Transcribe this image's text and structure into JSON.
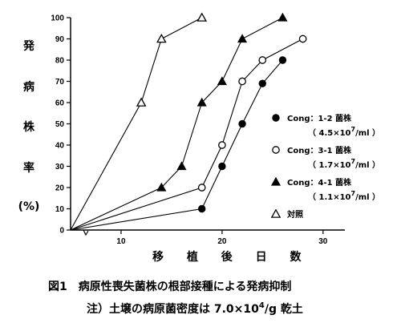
{
  "chart_data": {
    "type": "line",
    "title": "",
    "xlabel": "移 植 後 日 数",
    "ylabel_chars": [
      "発",
      "病",
      "株",
      "率",
      "(%)"
    ],
    "xlim": [
      5,
      32
    ],
    "ylim": [
      0,
      100
    ],
    "xticks": [
      10,
      20,
      30
    ],
    "yticks": [
      0,
      10,
      20,
      30,
      40,
      50,
      60,
      70,
      80,
      90,
      100
    ],
    "origin": [
      5,
      0
    ],
    "grid": false,
    "legend_position": "right",
    "series": [
      {
        "name": "Cong：1-2 菌株",
        "conc": "（ 4.5×10",
        "exp": "7",
        "unit": "/ml ）",
        "marker": "filled-circle",
        "x": [
          18,
          20,
          22,
          24,
          26
        ],
        "y": [
          10,
          30,
          50,
          69,
          80
        ]
      },
      {
        "name": "Cong：3-1 菌株",
        "conc": "（ 1.7×10",
        "exp": "7",
        "unit": "/ml ）",
        "marker": "open-circle",
        "x": [
          18,
          20,
          22,
          24,
          28
        ],
        "y": [
          20,
          40,
          70,
          80,
          90
        ]
      },
      {
        "name": "Cong：4-1 菌株",
        "conc": "（ 1.1×10",
        "exp": "7",
        "unit": "/ml ）",
        "marker": "filled-triangle",
        "x": [
          14,
          16,
          18,
          20,
          22,
          26
        ],
        "y": [
          20,
          30,
          60,
          70,
          90,
          100
        ]
      },
      {
        "name": "対照",
        "conc": "",
        "exp": "",
        "unit": "",
        "marker": "open-triangle",
        "x": [
          12,
          14,
          18
        ],
        "y": [
          60,
          90,
          100
        ]
      }
    ]
  },
  "caption": {
    "line1": "図1　病原性喪失菌株の根部接種による発病抑制",
    "line2_prefix": "注）土壌の病原菌密度は 7.0×10",
    "line2_exp": "4",
    "line2_suffix": "/g 乾土"
  }
}
